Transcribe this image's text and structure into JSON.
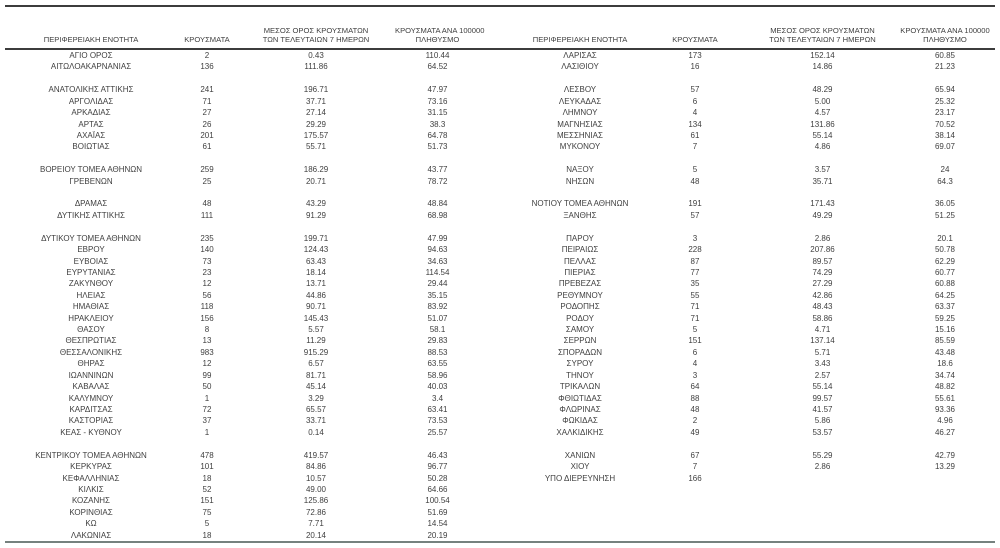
{
  "page": {
    "background_color": "#ffffff",
    "text_color": "#3f3f3f",
    "rule_color_dark": "#3c3c3c",
    "rule_color_bottom": "#76817e"
  },
  "table": {
    "headers": {
      "region": "ΠΕΡΙΦΕΡΕΙΑΚΗ ΕΝΟΤΗΤΑ",
      "cases": "ΚΡΟΥΣΜΑΤΑ",
      "avg7_line1": "ΜΕΣΟΣ ΟΡΟΣ ΚΡΟΥΣΜΑΤΩΝ",
      "avg7_line2": "ΤΩΝ ΤΕΛΕΥΤΑΙΩΝ 7 ΗΜΕΡΩΝ",
      "per100k_line1": "ΚΡΟΥΣΜΑΤΑ ΑΝΑ 100000",
      "per100k_line2": "ΠΛΗΘΥΣΜΟ"
    },
    "rows": [
      {
        "left": [
          "ΑΓΙΟ ΟΡΟΣ",
          "2",
          "0.43",
          "110.44"
        ],
        "right": [
          "ΛΑΡΙΣΑΣ",
          "173",
          "152.14",
          "60.85"
        ]
      },
      {
        "left": [
          "ΑΙΤΩΛΟΑΚΑΡΝΑΝΙΑΣ",
          "136",
          "111.86",
          "64.52"
        ],
        "right": [
          "ΛΑΣΙΘΙΟΥ",
          "16",
          "14.86",
          "21.23"
        ]
      },
      {
        "spacer": true
      },
      {
        "left": [
          "ΑΝΑΤΟΛΙΚΗΣ ΑΤΤΙΚΗΣ",
          "241",
          "196.71",
          "47.97"
        ],
        "right": [
          "ΛΕΣΒΟΥ",
          "57",
          "48.29",
          "65.94"
        ]
      },
      {
        "left": [
          "ΑΡΓΟΛΙΔΑΣ",
          "71",
          "37.71",
          "73.16"
        ],
        "right": [
          "ΛΕΥΚΑΔΑΣ",
          "6",
          "5.00",
          "25.32"
        ]
      },
      {
        "left": [
          "ΑΡΚΑΔΙΑΣ",
          "27",
          "27.14",
          "31.15"
        ],
        "right": [
          "ΛΗΜΝΟΥ",
          "4",
          "4.57",
          "23.17"
        ]
      },
      {
        "left": [
          "ΑΡΤΑΣ",
          "26",
          "29.29",
          "38.3"
        ],
        "right": [
          "ΜΑΓΝΗΣΙΑΣ",
          "134",
          "131.86",
          "70.52"
        ]
      },
      {
        "left": [
          "ΑΧΑΪΑΣ",
          "201",
          "175.57",
          "64.78"
        ],
        "right": [
          "ΜΕΣΣΗΝΙΑΣ",
          "61",
          "55.14",
          "38.14"
        ]
      },
      {
        "left": [
          "ΒΟΙΩΤΙΑΣ",
          "61",
          "55.71",
          "51.73"
        ],
        "right": [
          "ΜΥΚΟΝΟΥ",
          "7",
          "4.86",
          "69.07"
        ]
      },
      {
        "spacer": true
      },
      {
        "left": [
          "ΒΟΡΕΙΟΥ ΤΟΜΕΑ ΑΘΗΝΩΝ",
          "259",
          "186.29",
          "43.77"
        ],
        "right": [
          "ΝΑΞΟΥ",
          "5",
          "3.57",
          "24"
        ]
      },
      {
        "left": [
          "ΓΡΕΒΕΝΩΝ",
          "25",
          "20.71",
          "78.72"
        ],
        "right": [
          "ΝΗΣΩΝ",
          "48",
          "35.71",
          "64.3"
        ]
      },
      {
        "spacer": true
      },
      {
        "left": [
          "ΔΡΑΜΑΣ",
          "48",
          "43.29",
          "48.84"
        ],
        "right": [
          "ΝΟΤΙΟΥ ΤΟΜΕΑ ΑΘΗΝΩΝ",
          "191",
          "171.43",
          "36.05"
        ]
      },
      {
        "left": [
          "ΔΥΤΙΚΗΣ ΑΤΤΙΚΗΣ",
          "111",
          "91.29",
          "68.98"
        ],
        "right": [
          "ΞΑΝΘΗΣ",
          "57",
          "49.29",
          "51.25"
        ]
      },
      {
        "spacer": true
      },
      {
        "left": [
          "ΔΥΤΙΚΟΥ ΤΟΜΕΑ ΑΘΗΝΩΝ",
          "235",
          "199.71",
          "47.99"
        ],
        "right": [
          "ΠΑΡΟΥ",
          "3",
          "2.86",
          "20.1"
        ]
      },
      {
        "left": [
          "ΕΒΡΟΥ",
          "140",
          "124.43",
          "94.63"
        ],
        "right": [
          "ΠΕΙΡΑΙΩΣ",
          "228",
          "207.86",
          "50.78"
        ]
      },
      {
        "left": [
          "ΕΥΒΟΙΑΣ",
          "73",
          "63.43",
          "34.63"
        ],
        "right": [
          "ΠΕΛΛΑΣ",
          "87",
          "89.57",
          "62.29"
        ]
      },
      {
        "left": [
          "ΕΥΡΥΤΑΝΙΑΣ",
          "23",
          "18.14",
          "114.54"
        ],
        "right": [
          "ΠΙΕΡΙΑΣ",
          "77",
          "74.29",
          "60.77"
        ]
      },
      {
        "left": [
          "ΖΑΚΥΝΘΟΥ",
          "12",
          "13.71",
          "29.44"
        ],
        "right": [
          "ΠΡΕΒΕΖΑΣ",
          "35",
          "27.29",
          "60.88"
        ]
      },
      {
        "left": [
          "ΗΛΕΙΑΣ",
          "56",
          "44.86",
          "35.15"
        ],
        "right": [
          "ΡΕΘΥΜΝΟΥ",
          "55",
          "42.86",
          "64.25"
        ]
      },
      {
        "left": [
          "ΗΜΑΘΙΑΣ",
          "118",
          "90.71",
          "83.92"
        ],
        "right": [
          "ΡΟΔΟΠΗΣ",
          "71",
          "48.43",
          "63.37"
        ]
      },
      {
        "left": [
          "ΗΡΑΚΛΕΙΟΥ",
          "156",
          "145.43",
          "51.07"
        ],
        "right": [
          "ΡΟΔΟΥ",
          "71",
          "58.86",
          "59.25"
        ]
      },
      {
        "left": [
          "ΘΑΣΟΥ",
          "8",
          "5.57",
          "58.1"
        ],
        "right": [
          "ΣΑΜΟΥ",
          "5",
          "4.71",
          "15.16"
        ]
      },
      {
        "left": [
          "ΘΕΣΠΡΩΤΙΑΣ",
          "13",
          "11.29",
          "29.83"
        ],
        "right": [
          "ΣΕΡΡΩΝ",
          "151",
          "137.14",
          "85.59"
        ]
      },
      {
        "left": [
          "ΘΕΣΣΑΛΟΝΙΚΗΣ",
          "983",
          "915.29",
          "88.53"
        ],
        "right": [
          "ΣΠΟΡΑΔΩΝ",
          "6",
          "5.71",
          "43.48"
        ]
      },
      {
        "left": [
          "ΘΗΡΑΣ",
          "12",
          "6.57",
          "63.55"
        ],
        "right": [
          "ΣΥΡΟΥ",
          "4",
          "3.43",
          "18.6"
        ]
      },
      {
        "left": [
          "ΙΩΑΝΝΙΝΩΝ",
          "99",
          "81.71",
          "58.96"
        ],
        "right": [
          "ΤΗΝΟΥ",
          "3",
          "2.57",
          "34.74"
        ]
      },
      {
        "left": [
          "ΚΑΒΑΛΑΣ",
          "50",
          "45.14",
          "40.03"
        ],
        "right": [
          "ΤΡΙΚΑΛΩΝ",
          "64",
          "55.14",
          "48.82"
        ]
      },
      {
        "left": [
          "ΚΑΛΥΜΝΟΥ",
          "1",
          "3.29",
          "3.4"
        ],
        "right": [
          "ΦΘΙΩΤΙΔΑΣ",
          "88",
          "99.57",
          "55.61"
        ]
      },
      {
        "left": [
          "ΚΑΡΔΙΤΣΑΣ",
          "72",
          "65.57",
          "63.41"
        ],
        "right": [
          "ΦΛΩΡΙΝΑΣ",
          "48",
          "41.57",
          "93.36"
        ]
      },
      {
        "left": [
          "ΚΑΣΤΟΡΙΑΣ",
          "37",
          "33.71",
          "73.53"
        ],
        "right": [
          "ΦΩΚΙΔΑΣ",
          "2",
          "5.86",
          "4.96"
        ]
      },
      {
        "left": [
          "ΚΕΑΣ - ΚΥΘΝΟΥ",
          "1",
          "0.14",
          "25.57"
        ],
        "right": [
          "ΧΑΛΚΙΔΙΚΗΣ",
          "49",
          "53.57",
          "46.27"
        ]
      },
      {
        "spacer": true
      },
      {
        "left": [
          "ΚΕΝΤΡΙΚΟΥ ΤΟΜΕΑ ΑΘΗΝΩΝ",
          "478",
          "419.57",
          "46.43"
        ],
        "right": [
          "ΧΑΝΙΩΝ",
          "67",
          "55.29",
          "42.79"
        ]
      },
      {
        "left": [
          "ΚΕΡΚΥΡΑΣ",
          "101",
          "84.86",
          "96.77"
        ],
        "right": [
          "ΧΙΟΥ",
          "7",
          "2.86",
          "13.29"
        ]
      },
      {
        "left": [
          "ΚΕΦΑΛΛΗΝΙΑΣ",
          "18",
          "10.57",
          "50.28"
        ],
        "right": [
          "ΥΠΟ ΔΙΕΡΕΥΝΗΣΗ",
          "166",
          "",
          ""
        ]
      },
      {
        "left": [
          "ΚΙΛΚΙΣ",
          "52",
          "49.00",
          "64.66"
        ],
        "right": null
      },
      {
        "left": [
          "ΚΟΖΑΝΗΣ",
          "151",
          "125.86",
          "100.54"
        ],
        "right": null
      },
      {
        "left": [
          "ΚΟΡΙΝΘΙΑΣ",
          "75",
          "72.86",
          "51.69"
        ],
        "right": null
      },
      {
        "left": [
          "ΚΩ",
          "5",
          "7.71",
          "14.54"
        ],
        "right": null
      },
      {
        "left": [
          "ΛΑΚΩΝΙΑΣ",
          "18",
          "20.14",
          "20.19"
        ],
        "right": null
      }
    ]
  }
}
